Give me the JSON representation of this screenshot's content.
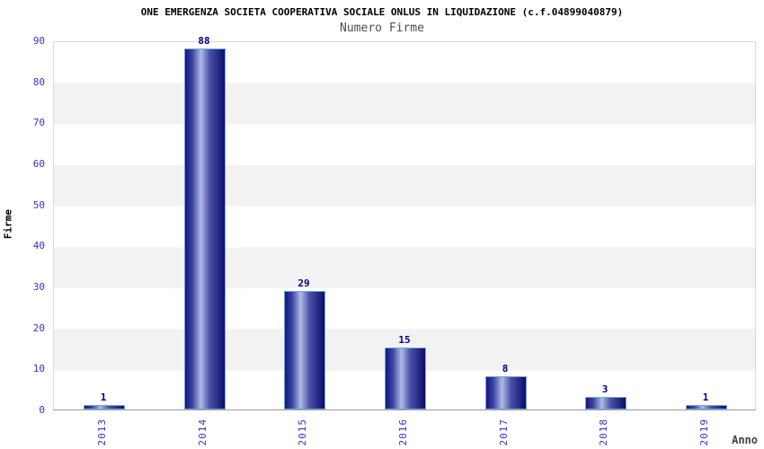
{
  "header": {
    "title": "ONE EMERGENZA SOCIETA COOPERATIVA SOCIALE ONLUS IN LIQUIDAZIONE (c.f.04899040879)",
    "subtitle": "Numero Firme"
  },
  "chart_data": {
    "type": "bar",
    "title": "ONE EMERGENZA SOCIETA COOPERATIVA SOCIALE ONLUS IN LIQUIDAZIONE (c.f.04899040879)",
    "subtitle": "Numero Firme",
    "categories": [
      "2013",
      "2014",
      "2015",
      "2016",
      "2017",
      "2018",
      "2019"
    ],
    "values": [
      1,
      88,
      29,
      15,
      8,
      3,
      1
    ],
    "xlabel": "Anno",
    "ylabel": "Firme",
    "ylim": [
      0,
      90
    ],
    "yticks": [
      0,
      10,
      20,
      30,
      40,
      50,
      60,
      70,
      80,
      90
    ],
    "grid": "horizontal-bands",
    "legend_position": "none"
  },
  "colors": {
    "title_text": "#000000",
    "subtitle_text": "#4d4d4d",
    "axis_tick_label": "#3333cc",
    "bar_value_label": "#000080",
    "bar_gradient_dark": "#13137a",
    "bar_gradient_light": "#b0bae6",
    "bar_border": "#6fa8dc",
    "band_gray": "#f2f2f2",
    "plot_border": "#d9d9d9",
    "axis_line": "#999999",
    "xlabel_text": "#404040"
  }
}
